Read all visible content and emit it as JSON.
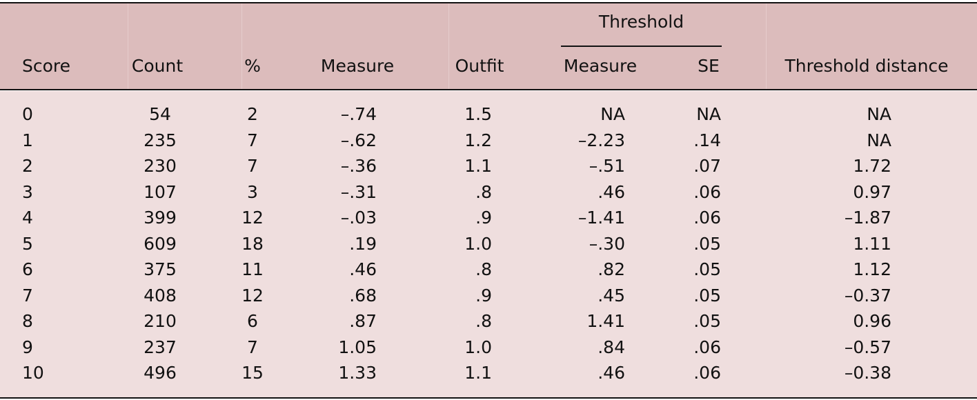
{
  "table": {
    "group_header": "Threshold",
    "columns": [
      "Score",
      "Count",
      "%",
      "Measure",
      "Outfit",
      "Measure",
      "SE",
      "Threshold distance"
    ],
    "rows": [
      [
        "0",
        "54",
        "2",
        "–.74",
        "1.5",
        "NA",
        "NA",
        "NA"
      ],
      [
        "1",
        "235",
        "7",
        "–.62",
        "1.2",
        "–2.23",
        ".14",
        "NA"
      ],
      [
        "2",
        "230",
        "7",
        "–.36",
        "1.1",
        "–.51",
        ".07",
        "1.72"
      ],
      [
        "3",
        "107",
        "3",
        "–.31",
        ".8",
        ".46",
        ".06",
        "0.97"
      ],
      [
        "4",
        "399",
        "12",
        "–.03",
        ".9",
        "–1.41",
        ".06",
        "–1.87"
      ],
      [
        "5",
        "609",
        "18",
        ".19",
        "1.0",
        "–.30",
        ".05",
        "1.11"
      ],
      [
        "6",
        "375",
        "11",
        ".46",
        ".8",
        ".82",
        ".05",
        "1.12"
      ],
      [
        "7",
        "408",
        "12",
        ".68",
        ".9",
        ".45",
        ".05",
        "–0.37"
      ],
      [
        "8",
        "210",
        "6",
        ".87",
        ".8",
        "1.41",
        ".05",
        "0.96"
      ],
      [
        "9",
        "237",
        "7",
        "1.05",
        "1.0",
        ".84",
        ".06",
        "–0.57"
      ],
      [
        "10",
        "496",
        "15",
        "1.33",
        "1.1",
        ".46",
        ".06",
        "–0.38"
      ]
    ]
  }
}
